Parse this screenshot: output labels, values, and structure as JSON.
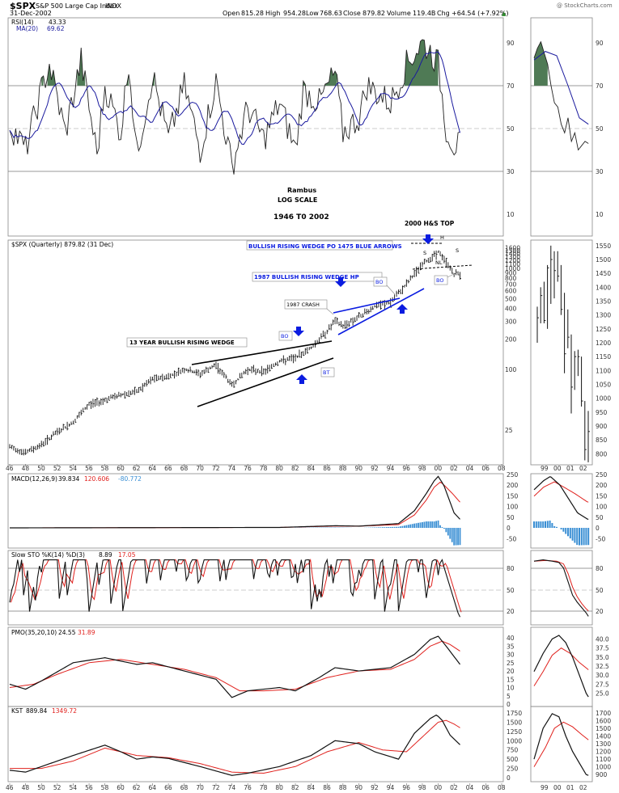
{
  "header": {
    "symbol": "$SPX",
    "name": "S&P 500 Large Cap Index",
    "exchange": "INDX",
    "date": "31-Dec-2002",
    "open_label": "Open",
    "open": "815.28",
    "high_label": "High",
    "high": "954.28",
    "low_label": "Low",
    "low": "768.63",
    "close_label": "Close",
    "close": "879.82",
    "volume_label": "Volume",
    "volume": "119.4B",
    "chg_label": "Chg",
    "chg": "+64.54 (+7.92%)",
    "up_arrow": "▲",
    "watermark": "@ StockCharts.com"
  },
  "colors": {
    "rsi_fill": "#4f7a55",
    "ma_blue": "#1a1a9e",
    "signal_red": "#e0201c",
    "hist_blue": "#3a8fd4",
    "annot_blue": "#0a1ce0"
  },
  "rsi": {
    "legend_name": "RSI(14)",
    "legend_value": "43.33",
    "ma_legend_name": "MA(20)",
    "ma_legend_value": "69.62",
    "levels": [
      "90",
      "70",
      "50",
      "30",
      "10"
    ]
  },
  "price": {
    "legend": "$SPX (Quarterly) 879.82 (31 Dec)",
    "right_scale": [
      "1600",
      "1500",
      "1400",
      "1300",
      "1200",
      "1100",
      "1000",
      "900",
      "800",
      "700",
      "600",
      "500",
      "400",
      "300",
      "200",
      "100",
      "25"
    ],
    "inset_scale": [
      "1550",
      "1500",
      "1450",
      "1400",
      "1350",
      "1300",
      "1250",
      "1200",
      "1150",
      "1100",
      "1050",
      "1000",
      "950",
      "900",
      "850",
      "800"
    ]
  },
  "annotations": {
    "author": "Rambus",
    "scale": "LOG SCALE",
    "range": "1946 T0 2002",
    "top": "2000 H&S TOP",
    "wedge_blue": "BULLISH RISING WEDGE PO 1475 BLUE ARROWS",
    "wedge_1987": "1987 BULLISH RISING WEDGE HP",
    "crash": "1987 CRASH",
    "wedge_13yr": "13 YEAR BULLISH RISING WEDGE",
    "bo": "BO",
    "bt": "BT",
    "h": "H",
    "s": "S",
    "nl": "NL"
  },
  "macd": {
    "legend_name": "MACD(12,26,9)",
    "legend_macd": "39.834",
    "legend_signal": "120.606",
    "legend_hist": "-80.772",
    "levels": [
      "250",
      "200",
      "150",
      "100",
      "50",
      "0",
      "-50"
    ]
  },
  "sto": {
    "legend_name": "Slow STO %K(14) %D(3)",
    "legend_k": "8.89",
    "legend_d": "17.05",
    "levels": [
      "80",
      "50",
      "20"
    ]
  },
  "pmo": {
    "legend_name": "PMO(35,20,10)",
    "legend_pmo": "24.55",
    "legend_signal": "31.89",
    "levels": [
      "40",
      "35",
      "30",
      "25",
      "20",
      "15",
      "10",
      "5",
      "0"
    ],
    "inset_levels": [
      "40.0",
      "37.5",
      "35.0",
      "32.5",
      "30.0",
      "27.5",
      "25.0"
    ]
  },
  "kst": {
    "legend_name": "KST",
    "legend_kst": "889.84",
    "legend_signal": "1349.72",
    "levels": [
      "1750",
      "1500",
      "1250",
      "1000",
      "750",
      "500",
      "250",
      "0"
    ],
    "inset_levels": [
      "1700",
      "1600",
      "1500",
      "1400",
      "1300",
      "1200",
      "1100",
      "1000",
      "900"
    ]
  },
  "x_axis": {
    "years": [
      "46",
      "48",
      "50",
      "52",
      "54",
      "56",
      "58",
      "60",
      "62",
      "64",
      "66",
      "68",
      "70",
      "72",
      "74",
      "76",
      "78",
      "80",
      "82",
      "84",
      "86",
      "88",
      "90",
      "92",
      "94",
      "96",
      "98",
      "00",
      "02",
      "04",
      "06",
      "08"
    ],
    "inset_years": [
      "99",
      "00",
      "01",
      "02"
    ]
  },
  "chart_data": {
    "type": "line",
    "title": "$SPX S&P 500 Large Cap Index (Quarterly)",
    "x_range": [
      1946,
      2002
    ],
    "scale": "log",
    "series": [
      {
        "name": "$SPX",
        "x": [
          1946,
          1948,
          1950,
          1952,
          1954,
          1956,
          1958,
          1960,
          1962,
          1964,
          1966,
          1968,
          1970,
          1972,
          1974,
          1976,
          1978,
          1980,
          1982,
          1984,
          1986,
          1987,
          1988,
          1990,
          1992,
          1994,
          1996,
          1998,
          2000,
          2001,
          2002
        ],
        "values": [
          17,
          15,
          18,
          24,
          30,
          45,
          50,
          56,
          60,
          80,
          85,
          100,
          90,
          110,
          70,
          100,
          95,
          120,
          130,
          165,
          240,
          300,
          270,
          330,
          420,
          460,
          700,
          1100,
          1450,
          1150,
          880
        ]
      }
    ],
    "inset_quarterly_1999_2002": {
      "x": [
        "99Q1",
        "99Q2",
        "99Q3",
        "99Q4",
        "00Q1",
        "00Q2",
        "00Q3",
        "00Q4",
        "01Q1",
        "01Q2",
        "01Q3",
        "01Q4",
        "02Q1",
        "02Q2",
        "02Q3",
        "02Q4"
      ],
      "high": [
        1330,
        1400,
        1420,
        1480,
        1550,
        1530,
        1530,
        1480,
        1380,
        1320,
        1230,
        1170,
        1175,
        1150,
        990,
        954
      ],
      "low": [
        1200,
        1270,
        1270,
        1250,
        1340,
        1360,
        1420,
        1300,
        1090,
        1180,
        945,
        1030,
        1080,
        970,
        776,
        769
      ],
      "close": [
        1290,
        1370,
        1280,
        1470,
        1500,
        1460,
        1440,
        1320,
        1160,
        1220,
        1040,
        1150,
        1150,
        990,
        815,
        880
      ]
    }
  }
}
